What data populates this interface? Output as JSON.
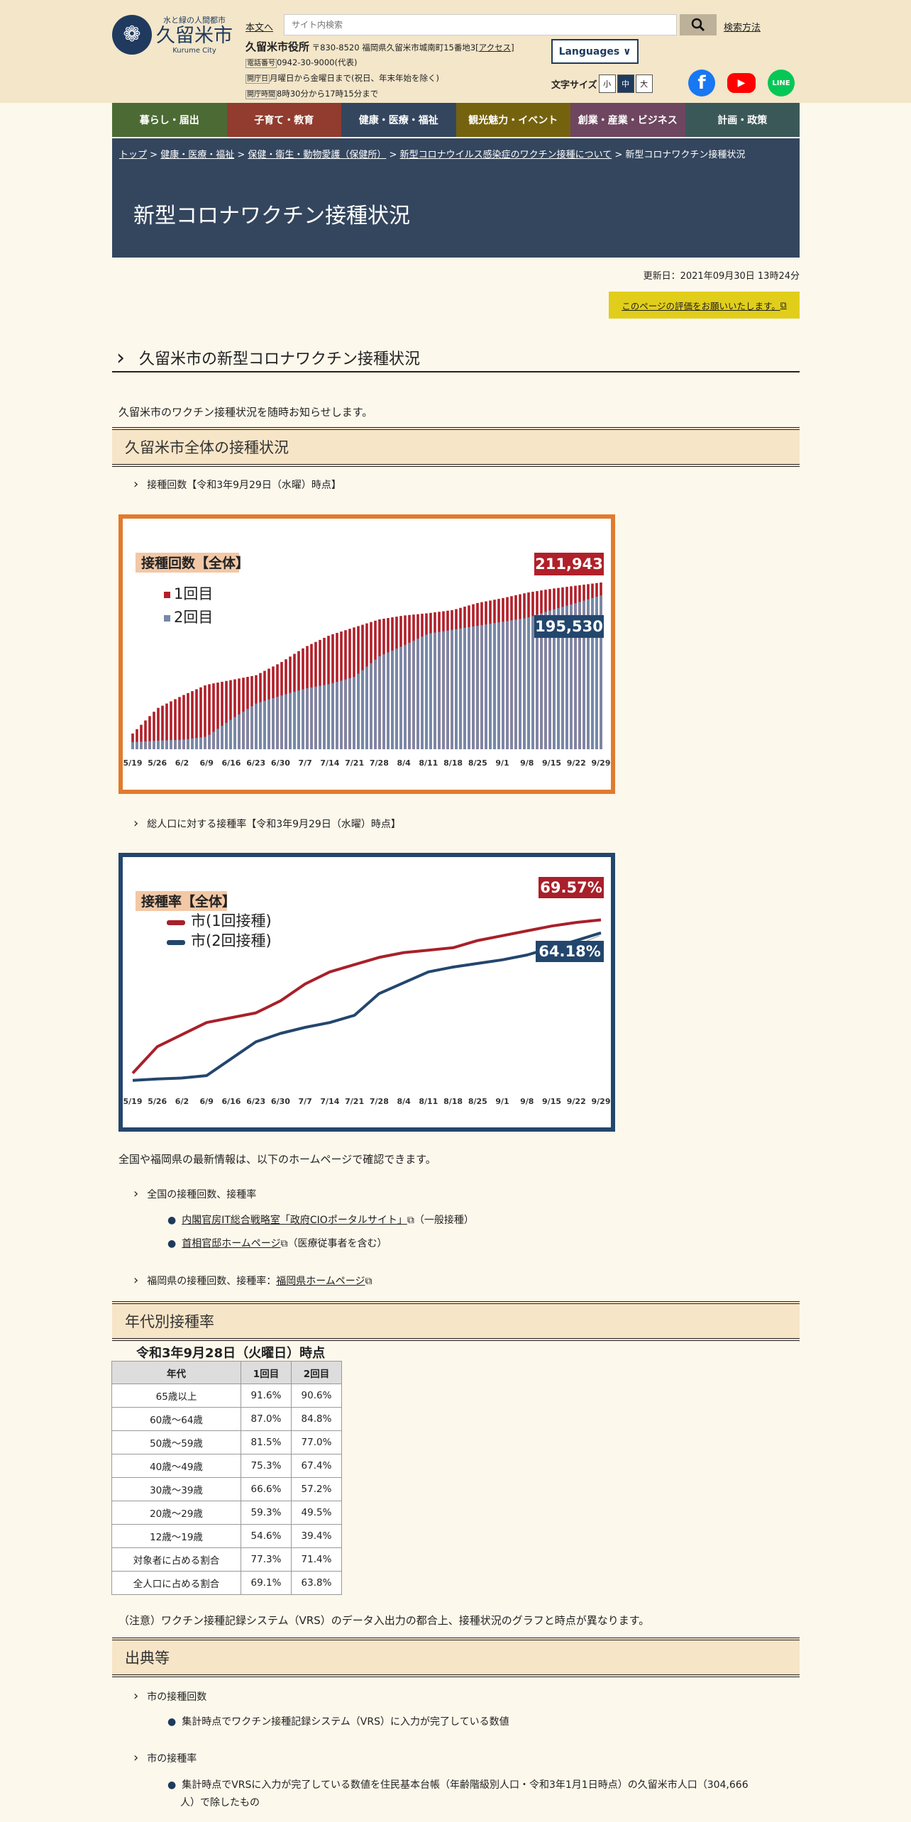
{
  "header": {
    "logo_tagline": "水と緑の人間都市",
    "logo_name": "久留米市",
    "logo_en": "Kurume City",
    "skip_link": "本文へ",
    "search_placeholder": "サイト内検索",
    "search_help": "検索方法",
    "office_name": "久留米市役所",
    "office_address": "〒830-8520 福岡県久留米市城南町15番地3",
    "access_link": "[アクセス]",
    "phone_tag": "電話番号",
    "phone": "0942-30-9000(代表)",
    "days_tag": "開庁日",
    "days": "月曜日から金曜日まで(祝日、年末年始を除く)",
    "hours_tag": "開庁時間",
    "hours": "8時30分から17時15分まで",
    "languages": "Languages",
    "font_size_label": "文字サイズ",
    "font_sizes": [
      "小",
      "中",
      "大"
    ],
    "social": [
      "facebook-icon",
      "youtube-icon",
      "line-icon"
    ],
    "line_label": "LINE"
  },
  "nav": [
    {
      "label": "暮らし・届出",
      "color": "#4c6b34"
    },
    {
      "label": "子育て・教育",
      "color": "#913c2e"
    },
    {
      "label": "健康・医療・福祉",
      "color": "#34465e"
    },
    {
      "label": "観光魅力・イベント",
      "color": "#74620f"
    },
    {
      "label": "創業・産業・ビジネス",
      "color": "#6e4660"
    },
    {
      "label": "計画・政策",
      "color": "#3b5858"
    }
  ],
  "breadcrumb": [
    "トップ",
    "健康・医療・福祉",
    "保健・衛生・動物愛護（保健所）",
    "新型コロナウイルス感染症のワクチン接種について",
    "新型コロナワクチン接種状況"
  ],
  "page_title": "新型コロナワクチン接種状況",
  "updated": "更新日：2021年09月30日 13時24分",
  "eval_button": "このページの評価をお願いいたします。",
  "section_title": "久留米市の新型コロナワクチン接種状況",
  "intro": "久留米市のワクチン接種状況を随時お知らせします。",
  "overall_heading": "久留米市全体の接種状況",
  "count_subheading": "接種回数【令和3年9月29日（水曜）時点】",
  "rate_subheading": "総人口に対する接種率【令和3年9月29日（水曜）時点】",
  "links_intro": "全国や福岡県の最新情報は、以下のホームページで確認できます。",
  "national_sub": "全国の接種回数、接種率",
  "national_links": [
    {
      "link": "内閣官房IT総合戦略室「政府CIOポータルサイト」",
      "note": "（一般接種）"
    },
    {
      "link": "首相官邸ホームページ",
      "note": "（医療従事者を含む）"
    }
  ],
  "fukuoka_sub": "福岡県の接種回数、接種率：",
  "fukuoka_link": "福岡県ホームページ",
  "age_heading": "年代別接種率",
  "age_caption": "令和3年9月28日（火曜日）時点",
  "age_table": {
    "headers": [
      "年代",
      "1回目",
      "2回目"
    ],
    "rows": [
      [
        "65歳以上",
        "91.6%",
        "90.6%"
      ],
      [
        "60歳～64歳",
        "87.0%",
        "84.8%"
      ],
      [
        "50歳～59歳",
        "81.5%",
        "77.0%"
      ],
      [
        "40歳～49歳",
        "75.3%",
        "67.4%"
      ],
      [
        "30歳～39歳",
        "66.6%",
        "57.2%"
      ],
      [
        "20歳～29歳",
        "59.3%",
        "49.5%"
      ],
      [
        "12歳～19歳",
        "54.6%",
        "39.4%"
      ],
      [
        "対象者に占める割合",
        "77.3%",
        "71.4%"
      ],
      [
        "全人口に占める割合",
        "69.1%",
        "63.8%"
      ]
    ]
  },
  "note": "（注意）ワクチン接種記録システム（VRS）のデータ入出力の都合上、接種状況のグラフと時点が異なります。",
  "source_heading": "出典等",
  "source_count_sub": "市の接種回数",
  "source_count_item": "集計時点でワクチン接種記録システム（VRS）に入力が完了している数値",
  "source_rate_sub": "市の接種率",
  "source_rate_item1": "集計時点でVRSに入力が完了している数値を住民基本台帳（年齢階級別人口・令和3年1月1日時点）の久留米市人口（304,666",
  "source_rate_item2": "人）で除したもの",
  "chart_data": [
    {
      "type": "bar",
      "title": "接種回数【全体】",
      "categories": [
        "5/19",
        "5/26",
        "6/2",
        "6/9",
        "6/16",
        "6/23",
        "6/30",
        "7/7",
        "7/14",
        "7/21",
        "7/28",
        "8/4",
        "8/11",
        "8/18",
        "8/25",
        "9/1",
        "9/8",
        "9/15",
        "9/22",
        "9/29"
      ],
      "series": [
        {
          "name": "1回目",
          "values": [
            20000,
            52000,
            68000,
            82000,
            88000,
            94000,
            110000,
            130000,
            145000,
            155000,
            165000,
            170000,
            173000,
            177000,
            186000,
            192000,
            199000,
            204000,
            208000,
            211943
          ]
        },
        {
          "name": "2回目",
          "values": [
            9000,
            11000,
            12000,
            16000,
            38000,
            58000,
            68000,
            77000,
            83000,
            92000,
            118000,
            132000,
            147000,
            152000,
            157000,
            162000,
            167000,
            177000,
            186000,
            195530
          ]
        }
      ],
      "callouts": [
        "211,943",
        "195,530"
      ],
      "colors": [
        "#b0202a",
        "#7688a8"
      ],
      "ylim": [
        0,
        230000
      ],
      "legend": "top-left",
      "border": "#e07b2e"
    },
    {
      "type": "line",
      "title": "接種率【全体】",
      "categories": [
        "5/19",
        "5/26",
        "6/2",
        "6/9",
        "6/16",
        "6/23",
        "6/30",
        "7/7",
        "7/14",
        "7/21",
        "7/28",
        "8/4",
        "8/11",
        "8/18",
        "8/25",
        "9/1",
        "9/8",
        "9/15",
        "9/22",
        "9/29"
      ],
      "series": [
        {
          "name": "市(1回接種)",
          "values": [
            6,
            17,
            22,
            27,
            29,
            31,
            36,
            43,
            48,
            51,
            54,
            56,
            57,
            58,
            61,
            63,
            65,
            67,
            68.5,
            69.57
          ]
        },
        {
          "name": "市(2回接種)",
          "values": [
            3,
            3.6,
            4,
            5,
            12,
            19,
            22.5,
            25,
            27,
            30,
            39,
            43.5,
            48,
            50,
            51.5,
            53,
            55,
            58,
            61,
            64.18
          ]
        }
      ],
      "callouts": [
        "69.57%",
        "64.18%"
      ],
      "colors": [
        "#a8202a",
        "#23466d"
      ],
      "ylim": [
        0,
        75
      ],
      "legend": "top-left",
      "border": "#23466d"
    }
  ]
}
